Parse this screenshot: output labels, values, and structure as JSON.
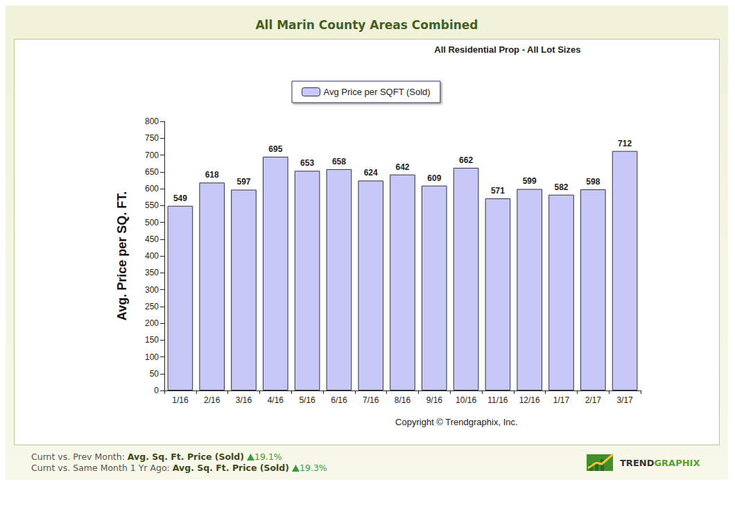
{
  "chart_data": {
    "type": "bar",
    "title": "All Marin County Areas Combined",
    "subtitle": "All Residential Prop - All Lot Sizes",
    "y_label": "Avg. Price per SQ. FT.",
    "categories": [
      "1/16",
      "2/16",
      "3/16",
      "4/16",
      "5/16",
      "6/16",
      "7/16",
      "8/16",
      "9/16",
      "10/16",
      "11/16",
      "12/16",
      "1/17",
      "2/17",
      "3/17"
    ],
    "series": [
      {
        "name": "Avg Price per SQFT (Sold)",
        "color": "#c8c8f8",
        "values": [
          549,
          618,
          597,
          695,
          653,
          658,
          624,
          642,
          609,
          662,
          571,
          599,
          582,
          598,
          712
        ]
      }
    ],
    "ylim": [
      0,
      800
    ],
    "yticks": [
      0,
      50,
      100,
      150,
      200,
      250,
      300,
      350,
      400,
      450,
      500,
      550,
      600,
      650,
      700,
      750,
      800
    ],
    "grid": false,
    "legend": "top",
    "data_labels": true,
    "annotations": [
      "Copyright © Trendgraphix, Inc."
    ]
  },
  "footer": [
    {
      "label": "Curnt vs. Prev Month:",
      "metric": "Avg. Sq. Ft. Price (Sold)",
      "change": {
        "value": 19.1,
        "label": "19.1%"
      }
    },
    {
      "label": "Curnt vs. Same Month 1 Yr Ago:",
      "metric": "Avg. Sq. Ft. Price (Sold)",
      "change": {
        "value": 19.3,
        "label": "19.3%"
      }
    }
  ],
  "logo": [
    "TREND",
    "GRAPHIX"
  ]
}
